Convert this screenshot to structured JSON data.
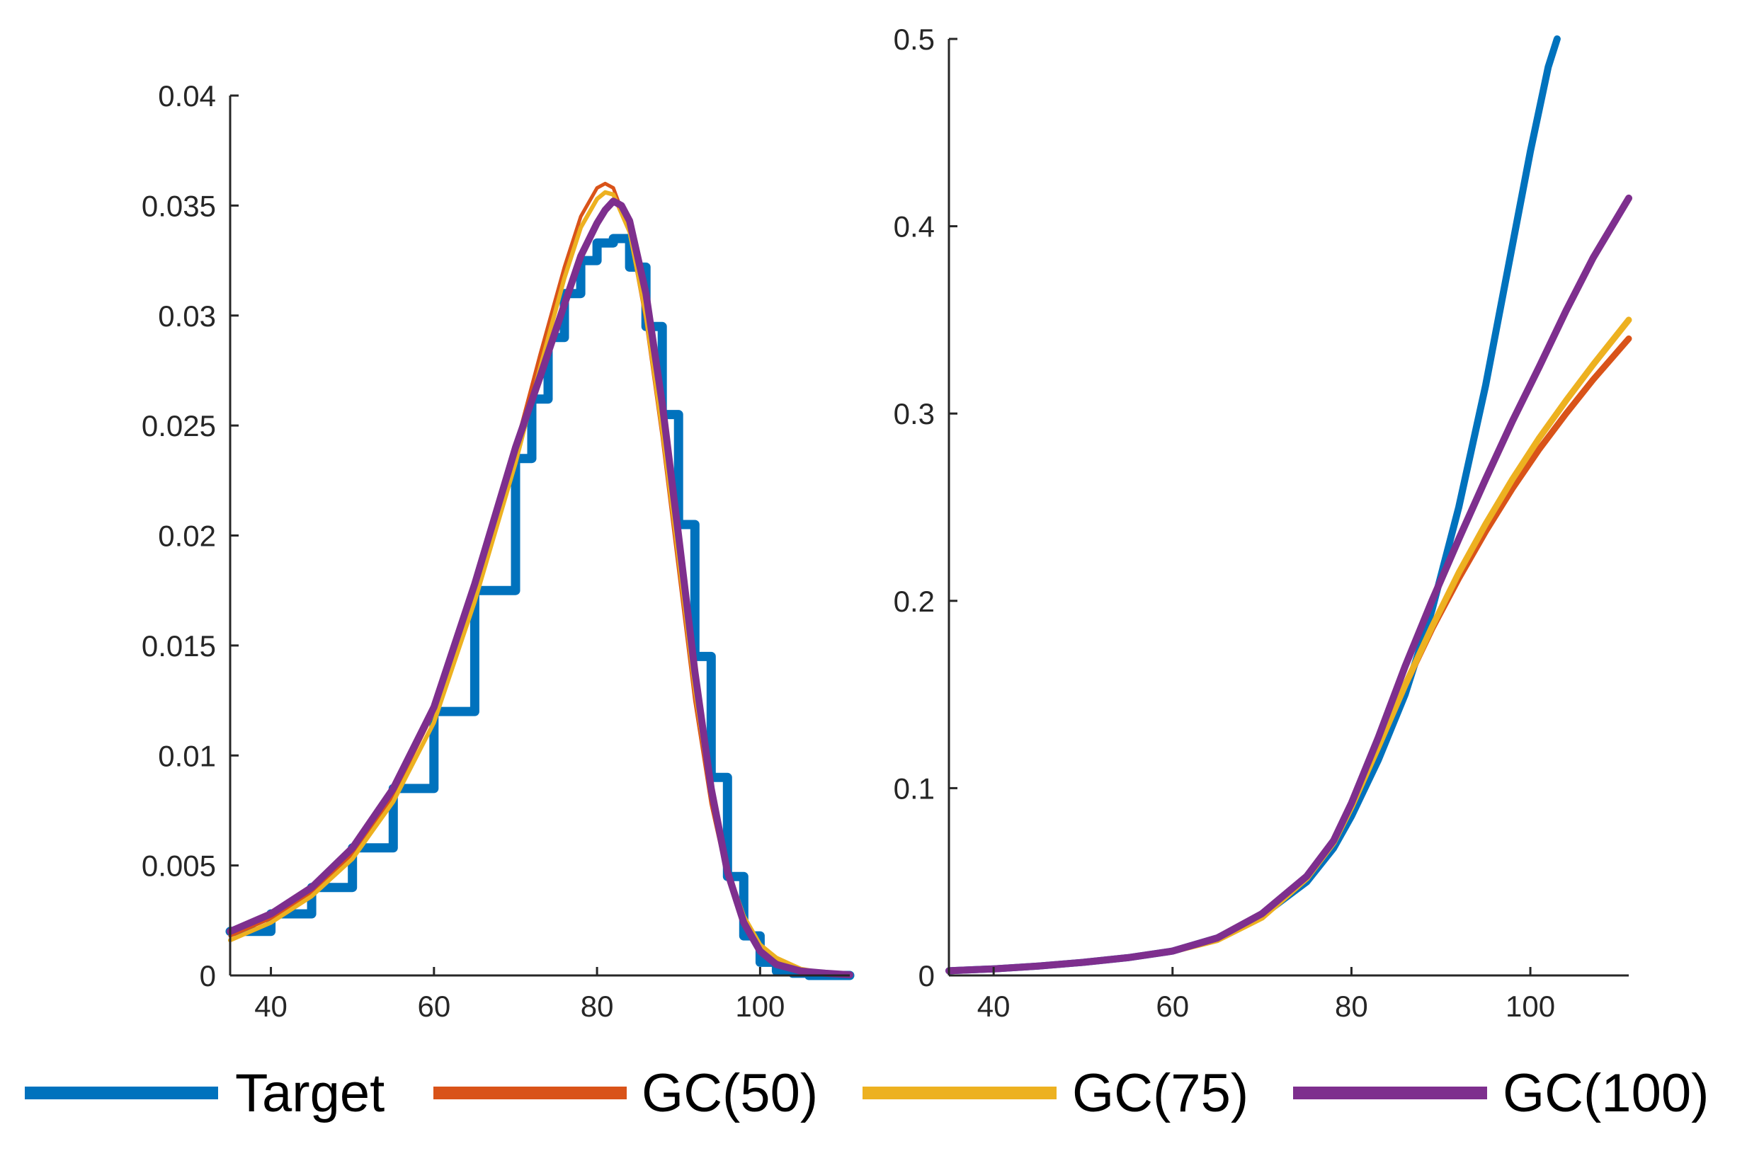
{
  "colors": {
    "target": "#0072BD",
    "gc50": "#D95319",
    "gc75": "#EDB120",
    "gc100": "#7E2F8E",
    "axis": "#262626"
  },
  "legend": [
    {
      "label": "Target",
      "color": "#0072BD"
    },
    {
      "label": "GC(50)",
      "color": "#D95319"
    },
    {
      "label": "GC(75)",
      "color": "#EDB120"
    },
    {
      "label": "GC(100)",
      "color": "#7E2F8E"
    }
  ],
  "chart_data": [
    {
      "type": "line",
      "title": "",
      "xlabel": "",
      "ylabel": "",
      "xlim": [
        35,
        111
      ],
      "ylim": [
        0,
        0.04
      ],
      "xticks": [
        40,
        60,
        80,
        100
      ],
      "yticks": [
        0,
        0.005,
        0.01,
        0.015,
        0.02,
        0.025,
        0.03,
        0.035,
        0.04
      ],
      "yticklabels": [
        "0",
        "0.005",
        "0.01",
        "0.015",
        "0.02",
        "0.025",
        "0.03",
        "0.035",
        "0.04"
      ],
      "series": [
        {
          "name": "Target",
          "style": "step",
          "width": 13,
          "x": [
            35,
            40,
            45,
            50,
            55,
            60,
            65,
            70,
            72,
            74,
            76,
            78,
            80,
            82,
            84,
            86,
            88,
            90,
            92,
            94,
            96,
            98,
            100,
            102,
            104,
            106,
            108,
            111
          ],
          "y": [
            0.002,
            0.0028,
            0.004,
            0.0058,
            0.0085,
            0.012,
            0.0175,
            0.0235,
            0.0262,
            0.029,
            0.031,
            0.0325,
            0.0333,
            0.0335,
            0.0322,
            0.0295,
            0.0255,
            0.0205,
            0.0145,
            0.009,
            0.0045,
            0.0018,
            0.0006,
            0.0002,
            0.0001,
            0.0,
            0.0,
            0.0
          ]
        },
        {
          "name": "GC(50)",
          "width": 5,
          "x": [
            35,
            40,
            45,
            50,
            55,
            60,
            65,
            70,
            73,
            76,
            78,
            80,
            81,
            82,
            84,
            86,
            88,
            90,
            92,
            94,
            96,
            98,
            100,
            102,
            105,
            108,
            111
          ],
          "y": [
            0.0018,
            0.0026,
            0.0038,
            0.0055,
            0.0082,
            0.012,
            0.0178,
            0.024,
            0.0282,
            0.0322,
            0.0345,
            0.0358,
            0.036,
            0.0358,
            0.0338,
            0.0298,
            0.0245,
            0.0185,
            0.0125,
            0.0078,
            0.0045,
            0.0025,
            0.0013,
            0.0007,
            0.0003,
            0.0001,
            5e-05
          ]
        },
        {
          "name": "GC(75)",
          "width": 6,
          "x": [
            35,
            40,
            45,
            50,
            55,
            60,
            65,
            70,
            73,
            76,
            78,
            80,
            81,
            82,
            84,
            86,
            88,
            90,
            92,
            94,
            96,
            98,
            100,
            102,
            105,
            108,
            111
          ],
          "y": [
            0.0016,
            0.0024,
            0.0036,
            0.0053,
            0.0079,
            0.0115,
            0.017,
            0.0233,
            0.0276,
            0.0317,
            0.034,
            0.0353,
            0.0356,
            0.0355,
            0.0338,
            0.03,
            0.0248,
            0.019,
            0.013,
            0.0082,
            0.0048,
            0.0027,
            0.0014,
            0.0008,
            0.0003,
            0.0001,
            5e-05
          ]
        },
        {
          "name": "GC(100)",
          "width": 10,
          "x": [
            35,
            40,
            45,
            50,
            55,
            60,
            65,
            70,
            73,
            76,
            78,
            80,
            81,
            82,
            83,
            84,
            86,
            88,
            90,
            92,
            94,
            96,
            98,
            100,
            102,
            105,
            108,
            111
          ],
          "y": [
            0.002,
            0.0028,
            0.004,
            0.0058,
            0.0085,
            0.0122,
            0.0178,
            0.024,
            0.0272,
            0.0305,
            0.0327,
            0.0342,
            0.0348,
            0.0352,
            0.035,
            0.0343,
            0.031,
            0.026,
            0.02,
            0.0138,
            0.0085,
            0.0047,
            0.0024,
            0.0011,
            0.0005,
            0.0002,
            0.0001,
            3e-05
          ]
        }
      ]
    },
    {
      "type": "line",
      "title": "",
      "xlabel": "",
      "ylabel": "",
      "xlim": [
        35,
        111
      ],
      "ylim": [
        0,
        0.5
      ],
      "xticks": [
        40,
        60,
        80,
        100
      ],
      "yticks": [
        0,
        0.1,
        0.2,
        0.3,
        0.4,
        0.5
      ],
      "yticklabels": [
        "0",
        "0.1",
        "0.2",
        "0.3",
        "0.4",
        "0.5"
      ],
      "series": [
        {
          "name": "Target",
          "width": 10,
          "x": [
            35,
            40,
            45,
            50,
            55,
            60,
            65,
            70,
            75,
            78,
            80,
            83,
            86,
            89,
            92,
            95,
            98,
            100,
            102,
            103
          ],
          "y": [
            0.0025,
            0.0035,
            0.005,
            0.007,
            0.0095,
            0.013,
            0.02,
            0.032,
            0.05,
            0.068,
            0.085,
            0.115,
            0.15,
            0.195,
            0.25,
            0.315,
            0.39,
            0.44,
            0.485,
            0.5
          ]
        },
        {
          "name": "GC(50)",
          "width": 9,
          "x": [
            35,
            40,
            45,
            50,
            55,
            60,
            65,
            70,
            75,
            78,
            80,
            83,
            86,
            89,
            92,
            95,
            98,
            101,
            104,
            107,
            111
          ],
          "y": [
            0.0025,
            0.0035,
            0.005,
            0.007,
            0.0095,
            0.013,
            0.02,
            0.033,
            0.053,
            0.072,
            0.092,
            0.123,
            0.155,
            0.185,
            0.212,
            0.237,
            0.26,
            0.281,
            0.3,
            0.318,
            0.34
          ]
        },
        {
          "name": "GC(75)",
          "width": 9,
          "x": [
            35,
            40,
            45,
            50,
            55,
            60,
            65,
            70,
            75,
            78,
            80,
            83,
            86,
            89,
            92,
            95,
            98,
            101,
            104,
            107,
            111
          ],
          "y": [
            0.0025,
            0.0035,
            0.005,
            0.007,
            0.0095,
            0.013,
            0.019,
            0.031,
            0.052,
            0.071,
            0.09,
            0.122,
            0.155,
            0.186,
            0.215,
            0.241,
            0.265,
            0.287,
            0.307,
            0.326,
            0.35
          ]
        },
        {
          "name": "GC(100)",
          "width": 10,
          "x": [
            35,
            40,
            45,
            50,
            55,
            60,
            65,
            70,
            75,
            78,
            80,
            83,
            86,
            89,
            92,
            95,
            98,
            101,
            104,
            107,
            111
          ],
          "y": [
            0.0025,
            0.0035,
            0.005,
            0.007,
            0.0095,
            0.013,
            0.02,
            0.033,
            0.053,
            0.072,
            0.092,
            0.127,
            0.165,
            0.2,
            0.233,
            0.265,
            0.296,
            0.325,
            0.355,
            0.383,
            0.415
          ]
        }
      ]
    }
  ]
}
